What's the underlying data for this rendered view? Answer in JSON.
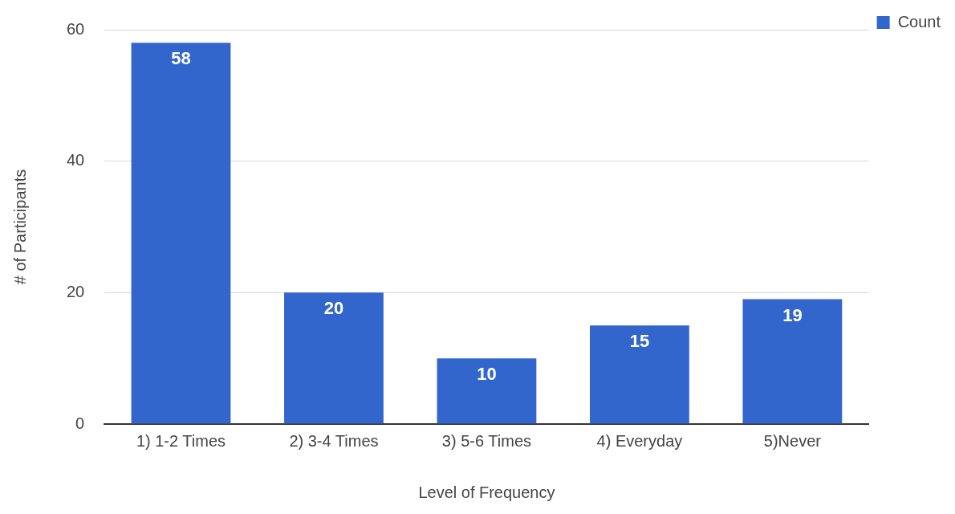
{
  "chart_data": {
    "type": "bar",
    "xlabel": "Level of Frequency",
    "ylabel": "# of Participants",
    "categories": [
      "1) 1-2 Times",
      "2) 3-4 Times",
      "3) 5-6 Times",
      "4) Everyday",
      "5)Never"
    ],
    "series": [
      {
        "name": "Count",
        "color": "#3366cc",
        "values": [
          58,
          20,
          10,
          15,
          19
        ]
      }
    ],
    "ylim": [
      0,
      60
    ],
    "yticks": [
      0,
      20,
      40,
      60
    ],
    "grid": "y",
    "legend": "top right",
    "data_labels": true
  }
}
